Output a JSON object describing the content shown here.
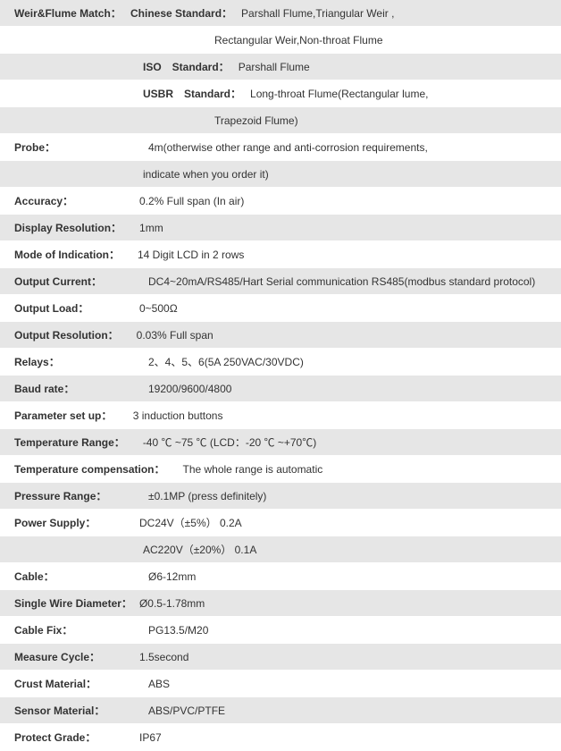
{
  "rows": [
    {
      "bg": "grey",
      "indent": "",
      "label": "Weir&Flume Match：",
      "sub": "Chinese Standard：",
      "value": "Parshall Flume,Triangular Weir ,"
    },
    {
      "bg": "white",
      "indent": "indent-2",
      "label": "",
      "sub": "",
      "value": "Rectangular Weir,Non-throat Flume"
    },
    {
      "bg": "grey",
      "indent": "indent-3",
      "label": "",
      "sub": "ISO　Standard：",
      "value": "Parshall Flume"
    },
    {
      "bg": "white",
      "indent": "indent-3",
      "label": "",
      "sub": "USBR　Standard：",
      "value": "Long-throat Flume(Rectangular lume,"
    },
    {
      "bg": "grey",
      "indent": "indent-2",
      "label": "",
      "sub": "",
      "value": "Trapezoid Flume)"
    },
    {
      "bg": "white",
      "indent": "",
      "label": "Probe：",
      "col": "col1",
      "value": "4m(otherwise other range and anti-corrosion requirements,"
    },
    {
      "bg": "grey",
      "indent": "indent-4",
      "label": "",
      "value": " indicate when you order it)"
    },
    {
      "bg": "white",
      "indent": "",
      "label": "Accuracy：",
      "col": "col1b",
      "value": "0.2% Full span (In air)"
    },
    {
      "bg": "grey",
      "indent": "",
      "label": "Display Resolution：",
      "col": "",
      "value": "　1mm"
    },
    {
      "bg": "white",
      "indent": "",
      "label": "Mode of Indication：",
      "col": "",
      "value": "　14 Digit LCD in 2 rows"
    },
    {
      "bg": "grey",
      "indent": "",
      "label": "Output Current：",
      "col": "col1",
      "value": "DC4~20mA/RS485/Hart Serial communication RS485(modbus standard protocol)"
    },
    {
      "bg": "white",
      "indent": "",
      "label": "Output Load：",
      "col": "col1b",
      "value": "0~500Ω"
    },
    {
      "bg": "grey",
      "indent": "",
      "label": "Output Resolution：",
      "col": "",
      "value": "　0.03% Full span"
    },
    {
      "bg": "white",
      "indent": "",
      "label": "Relays：",
      "col": "col1",
      "value": "2、4、5、6(5A 250VAC/30VDC)"
    },
    {
      "bg": "grey",
      "indent": "",
      "label": "Baud rate：",
      "col": "col1",
      "value": "19200/9600/4800"
    },
    {
      "bg": "white",
      "indent": "",
      "label": "Parameter set up：",
      "col": "",
      "value": "　 3 induction buttons"
    },
    {
      "bg": "grey",
      "indent": "",
      "label": "Temperature Range：",
      "col": "",
      "value": "　-40 ℃ ~75 ℃  (LCD：-20 ℃ ~+70℃)"
    },
    {
      "bg": "white",
      "indent": "",
      "label": "Temperature compensation：",
      "col": "",
      "value": "　The whole range   is automatic"
    },
    {
      "bg": "grey",
      "indent": "",
      "label": "Pressure Range：",
      "col": "col1",
      "value": " ±0.1MP (press definitely)"
    },
    {
      "bg": "white",
      "indent": "",
      "label": "Power Supply：",
      "col": "col1b",
      "value": "DC24V（±5%）  0.2A"
    },
    {
      "bg": "grey",
      "indent": "indent-4",
      "label": "",
      "value": "AC220V（±20%）  0.1A"
    },
    {
      "bg": "white",
      "indent": "",
      "label": "Cable：",
      "col": "col1",
      "value": "Ø6-12mm"
    },
    {
      "bg": "grey",
      "indent": "",
      "label": "Single Wire Diameter：",
      "col": "",
      "value": " Ø0.5-1.78mm"
    },
    {
      "bg": "white",
      "indent": "",
      "label": "Cable Fix：",
      "col": "col1",
      "value": "PG13.5/M20"
    },
    {
      "bg": "grey",
      "indent": "",
      "label": "Measure Cycle：",
      "col": "col1b",
      "value": " 1.5second"
    },
    {
      "bg": "white",
      "indent": "",
      "label": "Crust Material：",
      "col": "col1",
      "value": " ABS"
    },
    {
      "bg": "grey",
      "indent": "",
      "label": "Sensor Material：",
      "col": "col1",
      "value": " ABS/PVC/PTFE"
    },
    {
      "bg": "white",
      "indent": "",
      "label": "Protect Grade：",
      "col": "col1b",
      "value": " IP67"
    }
  ]
}
